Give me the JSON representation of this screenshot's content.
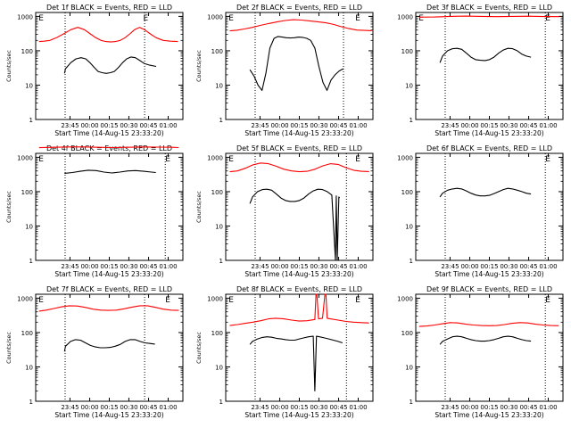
{
  "colors": {
    "events": "#000000",
    "lld": "#ff0000",
    "axes": "#000000",
    "background": "#ffffff"
  },
  "chart_data": [
    {
      "type": "line",
      "title": "Det 1f BLACK = Events, RED = LLD",
      "ylabel": "Counts/sec",
      "xlabel": "Start Time (14-Aug-15 23:33:20)",
      "yscale": "log",
      "ylim": [
        1,
        1300
      ],
      "xtick_labels": [
        "23:45",
        "00:00",
        "00:15",
        "00:30",
        "00:45",
        "01:00"
      ],
      "markers": [
        "E",
        "E"
      ],
      "series": [
        {
          "color": "#000000",
          "x": [
            0.0,
            0.6,
            3.9,
            7.2,
            10.4,
            13.3,
            15.9,
            18.5,
            21.0,
            23.5,
            26.1,
            28.7,
            31.2,
            33.8,
            36.3,
            38.9,
            41.6,
            44.3,
            47.1,
            50.1,
            53.3,
            57.3
          ],
          "y": [
            22,
            30,
            45,
            58,
            63,
            58,
            45,
            33,
            25,
            23,
            22,
            23,
            25,
            33,
            45,
            58,
            66,
            63,
            52,
            42,
            38,
            35
          ]
        },
        {
          "color": "#ff0000",
          "x": [
            -15.9,
            -12.8,
            -9.1,
            -5.0,
            -0.6,
            3.9,
            8.3,
            12.5,
            16.1,
            19.5,
            22.8,
            25.9,
            28.9,
            31.9,
            34.8,
            37.8,
            40.8,
            43.8,
            46.9,
            50.1,
            53.6,
            57.3,
            61.7,
            66.5,
            70.9
          ],
          "y": [
            185,
            190,
            200,
            240,
            310,
            410,
            480,
            410,
            310,
            240,
            200,
            185,
            180,
            185,
            200,
            240,
            310,
            410,
            480,
            410,
            310,
            240,
            200,
            190,
            185
          ]
        }
      ]
    },
    {
      "type": "line",
      "title": "Det 2f BLACK = Events, RED = LLD",
      "ylabel": "Counts/sec",
      "xlabel": "Start Time (14-Aug-15 23:33:20)",
      "yscale": "log",
      "ylim": [
        1,
        1300
      ],
      "xtick_labels": [
        "23:45",
        "00:00",
        "00:15",
        "00:30",
        "00:45",
        "01:00"
      ],
      "markers": [
        "E",
        "E"
      ],
      "series": [
        {
          "color": "#000000",
          "x": [
            -2.9,
            -0.2,
            2.2,
            4.7,
            7.1,
            9.6,
            12.2,
            14.7,
            17.3,
            19.8,
            22.4,
            24.9,
            27.5,
            30.0,
            32.6,
            35.1,
            37.7,
            40.2,
            42.8,
            45.3,
            47.8,
            50.3,
            53.0,
            55.5
          ],
          "y": [
            28,
            18,
            10,
            7,
            22,
            120,
            230,
            260,
            250,
            240,
            235,
            240,
            250,
            245,
            230,
            200,
            120,
            35,
            12,
            7,
            14,
            20,
            26,
            30
          ]
        },
        {
          "color": "#ff0000",
          "x": [
            -15.5,
            -11.2,
            -6.4,
            -1.3,
            3.8,
            8.9,
            14.0,
            19.1,
            24.2,
            29.3,
            34.4,
            39.5,
            44.6,
            49.7,
            54.4,
            59.1,
            63.8,
            68.6,
            73.3
          ],
          "y": [
            380,
            395,
            430,
            480,
            550,
            620,
            690,
            760,
            800,
            780,
            740,
            700,
            650,
            580,
            500,
            440,
            400,
            390,
            385
          ]
        }
      ]
    },
    {
      "type": "line",
      "title": "Det 3f BLACK = Events, RED = LLD",
      "ylabel": "",
      "xlabel": "Start Time (14-Aug-15 23:33:20)",
      "yscale": "log",
      "ylim": [
        1,
        1300
      ],
      "xtick_labels": [
        "23:45",
        "00:00",
        "00:15",
        "00:30",
        "00:45",
        "01:00"
      ],
      "markers": [
        "E",
        "E"
      ],
      "series": [
        {
          "color": "#000000",
          "x": [
            -2.9,
            -1.3,
            1.9,
            4.9,
            7.8,
            10.7,
            13.6,
            16.5,
            19.4,
            22.3,
            25.2,
            28.0,
            30.9,
            33.8,
            36.7,
            39.6,
            42.5,
            45.4,
            48.3,
            51.1,
            54.0
          ],
          "y": [
            45,
            70,
            100,
            115,
            118,
            110,
            85,
            65,
            55,
            53,
            52,
            55,
            65,
            85,
            105,
            118,
            115,
            100,
            80,
            70,
            65
          ]
        },
        {
          "color": "#ff0000",
          "x": [
            -15.8,
            -6.1,
            3.7,
            13.4,
            23.1,
            32.8,
            42.5,
            52.2,
            62.0,
            71.7
          ],
          "y": [
            950,
            960,
            1000,
            1020,
            1000,
            980,
            1000,
            1010,
            990,
            980
          ]
        }
      ]
    },
    {
      "type": "line",
      "title": "Det 4f BLACK = Events, RED = LLD",
      "ylabel": "Counts/sec",
      "xlabel": "Start Time (14-Aug-15 23:33:20)",
      "yscale": "log",
      "ylim": [
        1,
        1300
      ],
      "xtick_labels": [
        "23:45",
        "00:00",
        "00:15",
        "00:30",
        "00:45",
        "01:00"
      ],
      "markers": [
        "E",
        "E"
      ],
      "series": [
        {
          "color": "#000000",
          "x": [
            0.0,
            4.9,
            9.9,
            14.8,
            19.8,
            24.7,
            29.7,
            34.6,
            39.6,
            44.5,
            49.5,
            54.4,
            57.1
          ],
          "y": [
            340,
            360,
            390,
            420,
            410,
            370,
            350,
            370,
            400,
            410,
            390,
            370,
            360
          ]
        },
        {
          "color": "#ff0000",
          "x": [
            -15.9,
            -6.6,
            2.7,
            11.9,
            21.2,
            30.4,
            39.7,
            48.9,
            58.2,
            67.5,
            71.4
          ],
          "y": [
            1900,
            1950,
            2000,
            2000,
            1950,
            1920,
            1950,
            2000,
            1980,
            1950,
            1920
          ]
        }
      ]
    },
    {
      "type": "line",
      "title": "Det 5f BLACK = Events, RED = LLD",
      "ylabel": "Counts/sec",
      "xlabel": "Start Time (14-Aug-15 23:33:20)",
      "yscale": "log",
      "ylim": [
        1,
        1300
      ],
      "xtick_labels": [
        "23:45",
        "00:00",
        "00:15",
        "00:30",
        "00:45",
        "01:00"
      ],
      "markers": [
        "E",
        "E"
      ],
      "series": [
        {
          "color": "#000000",
          "x": [
            -2.9,
            -1.3,
            1.9,
            4.9,
            7.8,
            10.7,
            13.6,
            16.5,
            19.4,
            22.3,
            25.2,
            28.0,
            30.9,
            33.8,
            36.7,
            39.6,
            42.5,
            45.4,
            48.3,
            50.6,
            51.1,
            51.7,
            52.7,
            53.2
          ],
          "y": [
            45,
            70,
            100,
            115,
            118,
            110,
            85,
            65,
            55,
            52,
            52,
            55,
            65,
            85,
            105,
            118,
            115,
            100,
            80,
            1,
            75,
            1,
            70,
            65
          ]
        },
        {
          "color": "#ff0000",
          "x": [
            -15.5,
            -10.7,
            -5.8,
            -1.0,
            3.8,
            8.7,
            13.5,
            18.4,
            23.2,
            28.0,
            32.9,
            37.7,
            42.5,
            47.4,
            52.2,
            57.1,
            61.9,
            66.7,
            71.6
          ],
          "y": [
            380,
            400,
            480,
            600,
            680,
            650,
            550,
            450,
            400,
            380,
            390,
            450,
            560,
            650,
            620,
            500,
            420,
            390,
            385
          ]
        }
      ]
    },
    {
      "type": "line",
      "title": "Det 6f BLACK = Events, RED = LLD",
      "ylabel": "",
      "xlabel": "Start Time (14-Aug-15 23:33:20)",
      "yscale": "log",
      "ylim": [
        1,
        1300
      ],
      "xtick_labels": [
        "23:45",
        "00:00",
        "00:15",
        "00:30",
        "00:45",
        "01:00"
      ],
      "markers": [
        "E"
      ],
      "series": [
        {
          "color": "#000000",
          "x": [
            -2.9,
            -1.3,
            1.9,
            4.9,
            7.8,
            10.7,
            13.6,
            16.5,
            19.4,
            22.3,
            25.2,
            28.0,
            30.9,
            33.8,
            36.7,
            39.6,
            42.5,
            45.4,
            48.3,
            51.1,
            54.0
          ],
          "y": [
            70,
            90,
            110,
            120,
            125,
            120,
            105,
            90,
            80,
            75,
            75,
            78,
            88,
            100,
            115,
            125,
            120,
            110,
            100,
            90,
            85
          ]
        }
      ]
    },
    {
      "type": "line",
      "title": "Det 7f BLACK = Events, RED = LLD",
      "ylabel": "Counts/sec",
      "xlabel": "Start Time (14-Aug-15 23:33:20)",
      "yscale": "log",
      "ylim": [
        1,
        1300
      ],
      "xtick_labels": [
        "23:45",
        "00:00",
        "00:15",
        "00:30",
        "00:45",
        "01:00"
      ],
      "markers": [
        "E",
        "E"
      ],
      "series": [
        {
          "color": "#000000",
          "x": [
            0.0,
            0.6,
            3.8,
            6.9,
            10.0,
            13.1,
            16.2,
            19.3,
            22.4,
            25.5,
            28.6,
            31.7,
            34.8,
            37.9,
            41.0,
            44.1,
            47.2,
            50.3,
            53.4,
            56.5
          ],
          "y": [
            28,
            40,
            55,
            62,
            60,
            50,
            42,
            38,
            36,
            36,
            37,
            40,
            45,
            55,
            62,
            62,
            55,
            50,
            48,
            46
          ]
        },
        {
          "color": "#ff0000",
          "x": [
            -15.9,
            -11.5,
            -6.6,
            -1.7,
            3.2,
            8.0,
            12.9,
            17.8,
            22.7,
            27.6,
            32.4,
            37.3,
            42.2,
            47.1,
            51.9,
            56.8,
            61.7,
            66.6,
            71.5
          ],
          "y": [
            420,
            450,
            500,
            560,
            600,
            590,
            540,
            480,
            450,
            440,
            450,
            490,
            550,
            600,
            600,
            540,
            480,
            450,
            440
          ]
        }
      ]
    },
    {
      "type": "line",
      "title": "Det 8f BLACK = Events, RED = LLD",
      "ylabel": "Counts/sec",
      "xlabel": "Start Time (14-Aug-15 23:33:20)",
      "yscale": "log",
      "ylim": [
        1,
        1300
      ],
      "xtick_labels": [
        "23:45",
        "00:00",
        "00:15",
        "00:30",
        "00:45",
        "01:00"
      ],
      "markers": [
        "E",
        "E"
      ],
      "series": [
        {
          "color": "#000000",
          "x": [
            -2.9,
            -1.3,
            1.9,
            4.9,
            7.8,
            10.7,
            13.6,
            16.5,
            19.4,
            22.3,
            25.2,
            28.0,
            30.9,
            33.8,
            36.7,
            37.7,
            38.7,
            40.6,
            43.5,
            46.4,
            49.3,
            52.2,
            55.0
          ],
          "y": [
            45,
            55,
            65,
            72,
            75,
            73,
            68,
            65,
            62,
            60,
            60,
            65,
            70,
            75,
            78,
            2,
            78,
            75,
            70,
            65,
            60,
            55,
            50
          ]
        },
        {
          "color": "#ff0000",
          "x": [
            -15.5,
            -10.7,
            -5.8,
            -1.0,
            3.8,
            8.7,
            13.5,
            18.4,
            23.2,
            28.0,
            32.9,
            37.7,
            38.4,
            39.0,
            40.0,
            42.5,
            44.0,
            44.6,
            45.4,
            47.4,
            52.2,
            57.1,
            61.9,
            66.7,
            71.6
          ],
          "y": [
            160,
            170,
            185,
            200,
            220,
            250,
            260,
            250,
            230,
            215,
            220,
            240,
            1300,
            1300,
            250,
            260,
            1300,
            1300,
            260,
            250,
            230,
            210,
            200,
            195,
            190
          ]
        }
      ]
    },
    {
      "type": "line",
      "title": "Det 9f BLACK = Events, RED = LLD",
      "ylabel": "",
      "xlabel": "Start Time (14-Aug-15 23:33:20)",
      "yscale": "log",
      "ylim": [
        1,
        1300
      ],
      "xtick_labels": [
        "23:45",
        "00:00",
        "00:15",
        "00:30",
        "00:45",
        "01:00"
      ],
      "markers": [
        "E"
      ],
      "series": [
        {
          "color": "#000000",
          "x": [
            -2.9,
            -1.3,
            1.9,
            4.9,
            7.8,
            10.7,
            13.6,
            16.5,
            19.4,
            22.3,
            25.2,
            28.0,
            30.9,
            33.8,
            36.7,
            39.6,
            42.5,
            45.4,
            48.3,
            51.1,
            54.0
          ],
          "y": [
            45,
            55,
            65,
            75,
            78,
            75,
            68,
            62,
            58,
            56,
            56,
            58,
            62,
            68,
            75,
            78,
            75,
            68,
            62,
            58,
            56
          ]
        },
        {
          "color": "#ff0000",
          "x": [
            -15.8,
            -11.0,
            -6.1,
            -1.3,
            3.6,
            8.4,
            13.3,
            18.1,
            22.9,
            27.8,
            32.6,
            37.5,
            42.3,
            47.2,
            52.0,
            56.8,
            61.7,
            66.5,
            71.4
          ],
          "y": [
            150,
            155,
            165,
            180,
            195,
            190,
            175,
            165,
            160,
            158,
            160,
            170,
            185,
            195,
            190,
            175,
            165,
            160,
            158
          ]
        }
      ]
    }
  ]
}
